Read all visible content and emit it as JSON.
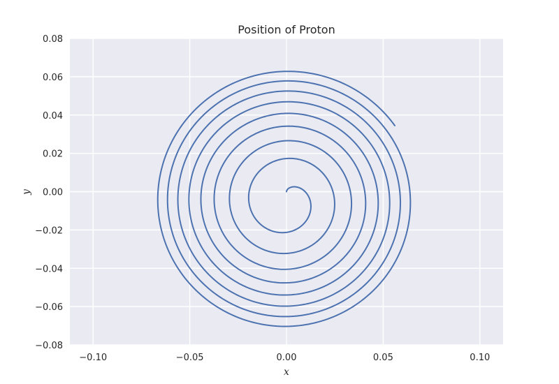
{
  "chart_data": {
    "type": "line",
    "title": "Position of Proton",
    "xlabel": "x",
    "ylabel": "y",
    "xlim": [
      -0.112,
      0.112
    ],
    "ylim": [
      -0.08,
      0.08
    ],
    "grid": true,
    "line_color": "#4c72b0",
    "background_color": "#eaeaf2",
    "xticks": [
      -0.1,
      -0.05,
      0.0,
      0.05,
      0.1
    ],
    "xtick_labels": [
      "−0.10",
      "−0.05",
      "0.00",
      "0.05",
      "0.10"
    ],
    "yticks": [
      -0.08,
      -0.06,
      -0.04,
      -0.02,
      0.0,
      0.02,
      0.04,
      0.06,
      0.08
    ],
    "ytick_labels": [
      "−0.08",
      "−0.06",
      "−0.04",
      "−0.02",
      "0.00",
      "0.02",
      "0.04",
      "0.06",
      "0.08"
    ],
    "series": [
      {
        "start": [
          0.0,
          0.0
        ],
        "end": [
          0.056,
          0.0345
        ],
        "spiral_center": [
          0.0,
          -0.005
        ],
        "turns": 8.6,
        "max_radius": 0.066
      }
    ]
  }
}
